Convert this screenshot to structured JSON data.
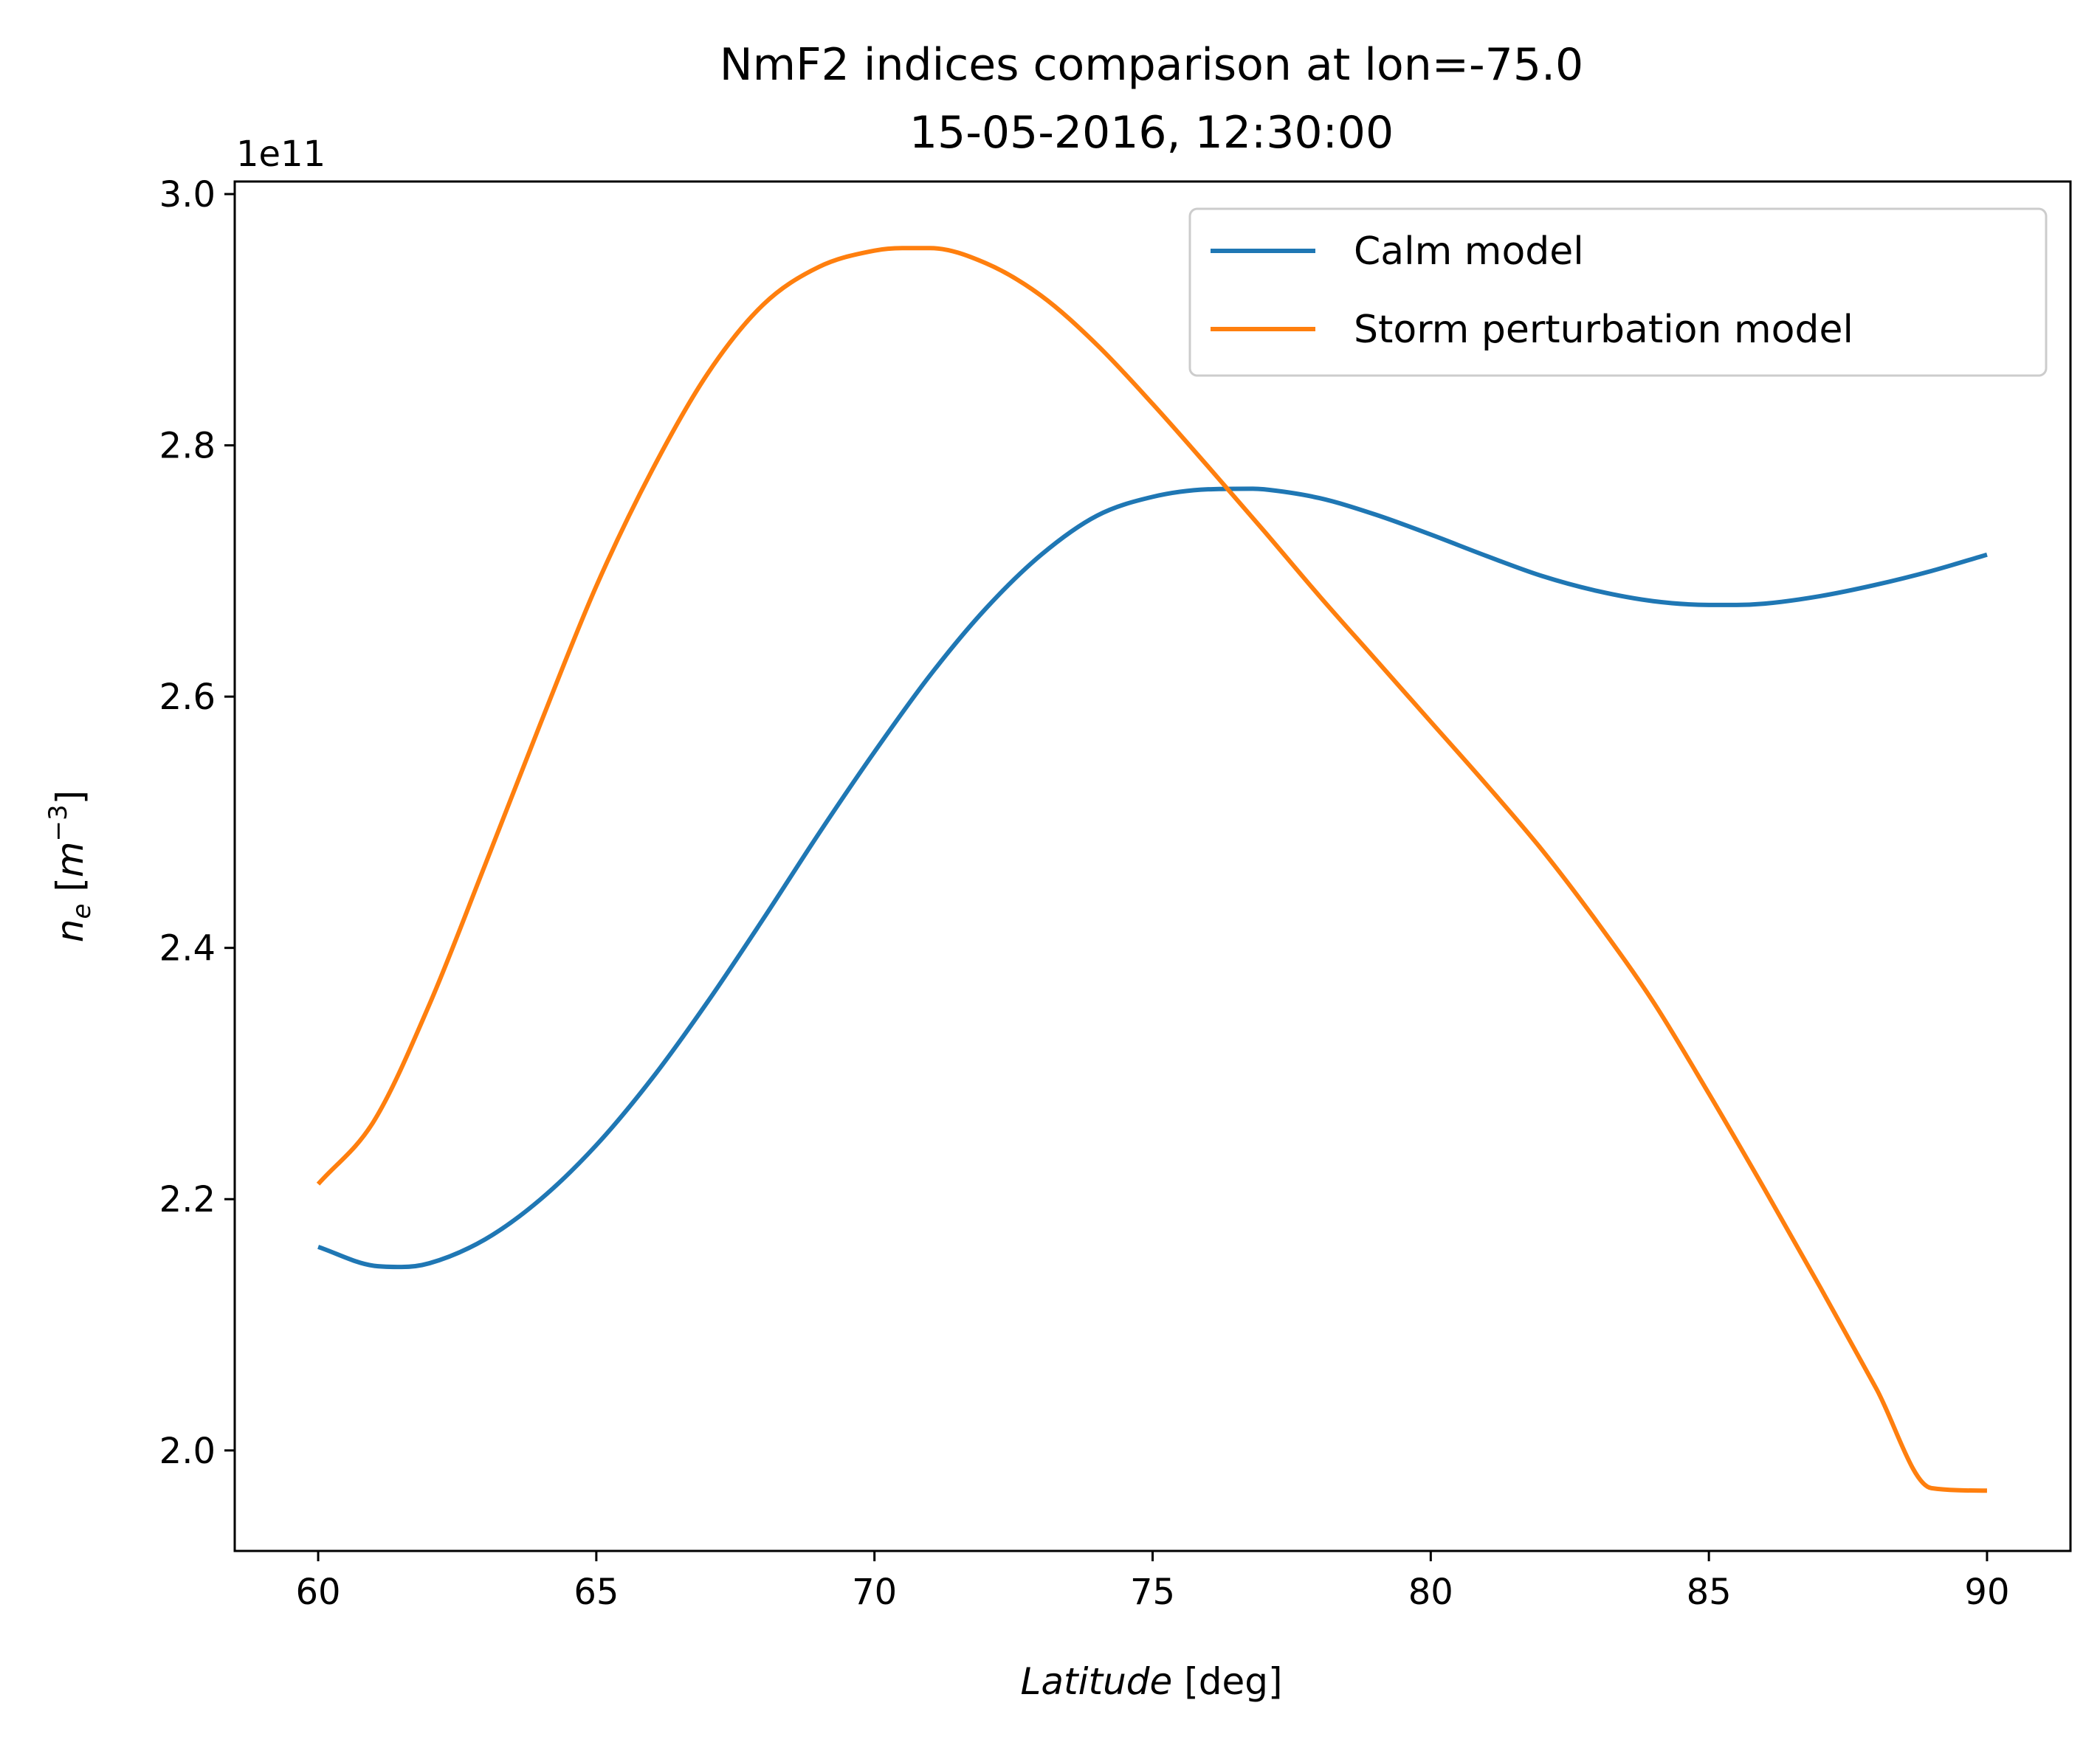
{
  "chart_data": {
    "type": "line",
    "title_lines": [
      "NmF2 indices comparison at lon=-75.0",
      "15-05-2016, 12:30:00"
    ],
    "xlabel": {
      "italic": "Latitude",
      "normal": " [deg]"
    },
    "ylabel": {
      "base": "n",
      "sub": "e",
      "bracket_open": " [",
      "unit": "m",
      "sup": "−3",
      "bracket_close": "]"
    },
    "y_offset_text": "1e11",
    "y_scale": 100000000000.0,
    "xlim": [
      58.5,
      91.5
    ],
    "ylim": [
      1.92,
      3.01
    ],
    "x_ticks": [
      60,
      65,
      70,
      75,
      80,
      85,
      90
    ],
    "x_tick_labels": [
      "60",
      "65",
      "70",
      "75",
      "80",
      "85",
      "90"
    ],
    "y_ticks": [
      2.0,
      2.2,
      2.4,
      2.6,
      2.8,
      3.0
    ],
    "y_tick_labels": [
      "2.0",
      "2.2",
      "2.4",
      "2.6",
      "2.8",
      "3.0"
    ],
    "grid": false,
    "legend_position": "top-right",
    "series": [
      {
        "name": "Calm model",
        "color": "#1f77b4",
        "x": [
          60,
          61,
          61.5,
          62,
          63,
          64,
          65,
          66,
          67,
          68,
          69,
          70,
          71,
          72,
          73,
          74,
          75,
          76,
          76.8,
          77,
          78,
          79,
          80,
          81,
          82,
          83,
          84,
          85,
          85.5,
          86,
          87,
          88,
          89,
          90
        ],
        "y": [
          2.162,
          2.147,
          2.146,
          2.149,
          2.168,
          2.2,
          2.243,
          2.296,
          2.357,
          2.423,
          2.491,
          2.556,
          2.617,
          2.67,
          2.713,
          2.744,
          2.759,
          2.765,
          2.7655,
          2.765,
          2.758,
          2.745,
          2.729,
          2.712,
          2.696,
          2.684,
          2.676,
          2.673,
          2.673,
          2.674,
          2.68,
          2.689,
          2.7,
          2.713
        ]
      },
      {
        "name": "Storm perturbation model",
        "color": "#ff7f0e",
        "x": [
          60,
          61,
          62,
          63,
          64,
          65,
          66,
          67,
          68,
          69,
          70,
          70.5,
          71,
          72,
          73,
          74,
          75,
          76,
          77,
          78,
          79,
          80,
          81,
          82,
          83,
          84,
          85,
          86,
          87,
          88,
          89,
          90
        ],
        "y": [
          2.212,
          2.262,
          2.355,
          2.466,
          2.579,
          2.688,
          2.78,
          2.857,
          2.912,
          2.942,
          2.955,
          2.957,
          2.957,
          2.945,
          2.919,
          2.88,
          2.833,
          2.783,
          2.732,
          2.68,
          2.63,
          2.58,
          2.53,
          2.478,
          2.42,
          2.357,
          2.284,
          2.208,
          2.13,
          2.05,
          1.97,
          1.968
        ]
      }
    ]
  }
}
